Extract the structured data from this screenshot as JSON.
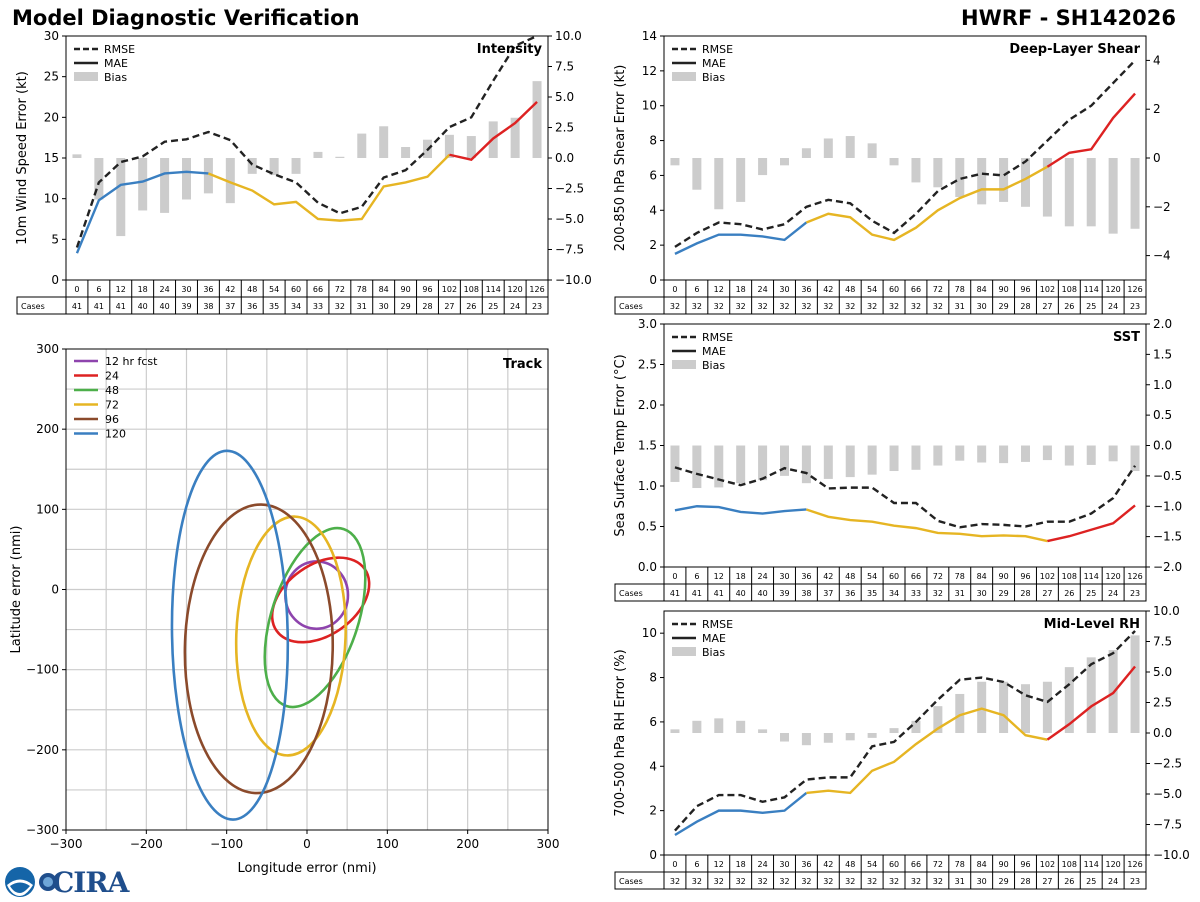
{
  "header": {
    "title": "Model Diagnostic Verification",
    "storm": "HWRF - SH142026"
  },
  "logo": {
    "text": "CIRA",
    "seal_text": "NOAA"
  },
  "colors": {
    "rmse": "#222222",
    "bias": "#cccccc",
    "seg1": "#3a7fc1",
    "seg2": "#e6b523",
    "seg3": "#dd2222",
    "grid": "#cccccc"
  },
  "hours": [
    "0",
    "6",
    "12",
    "18",
    "24",
    "30",
    "36",
    "42",
    "48",
    "54",
    "60",
    "66",
    "72",
    "78",
    "84",
    "90",
    "96",
    "102",
    "108",
    "114",
    "120",
    "126"
  ],
  "legend_labels": {
    "rmse": "RMSE",
    "mae": "MAE",
    "bias": "Bias"
  },
  "cases_label": "Cases",
  "chart_data": [
    {
      "id": "intensity",
      "type": "line",
      "title": "Intensity",
      "ylabel": "10m Wind Speed Error (kt)",
      "ylim": [
        0,
        30
      ],
      "yticks": [
        "0",
        "5",
        "10",
        "15",
        "20",
        "25",
        "30"
      ],
      "y2lim": [
        -10,
        10
      ],
      "y2ticks": [
        "−10.0",
        "−7.5",
        "−5.0",
        "−2.5",
        "0.0",
        "2.5",
        "5.0",
        "7.5",
        "10.0"
      ],
      "series": [
        {
          "name": "RMSE",
          "values": [
            4.0,
            12.0,
            14.5,
            15.2,
            17.0,
            17.3,
            18.2,
            17.2,
            14.2,
            13.0,
            12.0,
            9.5,
            8.2,
            9.0,
            12.6,
            13.5,
            16.0,
            18.8,
            20.0,
            24.5,
            28.8,
            30.0
          ]
        },
        {
          "name": "MAE",
          "values": [
            3.3,
            9.8,
            11.7,
            12.1,
            13.1,
            13.3,
            13.1,
            12.0,
            11.0,
            9.3,
            9.6,
            7.5,
            7.3,
            7.5,
            11.5,
            12.0,
            12.7,
            15.4,
            14.8,
            17.4,
            19.3,
            21.9
          ]
        },
        {
          "name": "Bias",
          "values": [
            0.3,
            -3.4,
            -6.4,
            -4.3,
            -4.5,
            -3.4,
            -2.9,
            -3.7,
            -1.3,
            -1.4,
            -1.3,
            0.5,
            0.1,
            2.0,
            2.6,
            0.9,
            1.5,
            1.9,
            1.8,
            3.0,
            3.3,
            6.3
          ]
        }
      ],
      "cases": [
        "41",
        "41",
        "41",
        "40",
        "40",
        "39",
        "38",
        "37",
        "36",
        "35",
        "34",
        "33",
        "32",
        "31",
        "30",
        "29",
        "28",
        "27",
        "26",
        "25",
        "24",
        "23"
      ]
    },
    {
      "id": "shear",
      "type": "line",
      "title": "Deep-Layer Shear",
      "ylabel": "200-850 hPa Shear Error (kt)",
      "ylim": [
        0,
        14
      ],
      "yticks": [
        "0",
        "2",
        "4",
        "6",
        "8",
        "10",
        "12",
        "14"
      ],
      "y2lim": [
        -5,
        5
      ],
      "y2ticks": [
        "−4",
        "−2",
        "0",
        "2",
        "4"
      ],
      "series": [
        {
          "name": "RMSE",
          "values": [
            1.9,
            2.7,
            3.3,
            3.2,
            2.9,
            3.2,
            4.2,
            4.6,
            4.4,
            3.4,
            2.7,
            3.8,
            5.1,
            5.8,
            6.1,
            6.0,
            6.8,
            8.0,
            9.2,
            10.0,
            11.3,
            12.6
          ]
        },
        {
          "name": "MAE",
          "values": [
            1.5,
            2.1,
            2.6,
            2.6,
            2.5,
            2.3,
            3.3,
            3.8,
            3.6,
            2.6,
            2.3,
            3.0,
            4.0,
            4.7,
            5.2,
            5.2,
            5.8,
            6.5,
            7.3,
            7.5,
            9.3,
            10.7
          ]
        },
        {
          "name": "Bias",
          "values": [
            -0.3,
            -1.3,
            -2.1,
            -1.8,
            -0.7,
            -0.3,
            0.4,
            0.8,
            0.9,
            0.6,
            -0.3,
            -1.0,
            -1.2,
            -1.6,
            -1.9,
            -1.8,
            -2.0,
            -2.4,
            -2.8,
            -2.8,
            -3.1,
            -2.9
          ]
        }
      ],
      "cases": [
        "32",
        "32",
        "32",
        "32",
        "32",
        "32",
        "32",
        "32",
        "32",
        "32",
        "32",
        "32",
        "32",
        "31",
        "30",
        "29",
        "28",
        "27",
        "26",
        "25",
        "24",
        "23"
      ]
    },
    {
      "id": "sst",
      "type": "line",
      "title": "SST",
      "ylabel": "Sea Surface Temp Error (°C)",
      "ylim": [
        0,
        3
      ],
      "yticks": [
        "0.0",
        "0.5",
        "1.0",
        "1.5",
        "2.0",
        "2.5",
        "3.0"
      ],
      "y2lim": [
        -2,
        2
      ],
      "y2ticks": [
        "−2.0",
        "−1.5",
        "−1.0",
        "−0.5",
        "0.0",
        "0.5",
        "1.0",
        "1.5",
        "2.0"
      ],
      "series": [
        {
          "name": "RMSE",
          "values": [
            1.23,
            1.15,
            1.08,
            1.01,
            1.09,
            1.22,
            1.16,
            0.97,
            0.98,
            0.98,
            0.79,
            0.79,
            0.57,
            0.49,
            0.53,
            0.52,
            0.5,
            0.56,
            0.56,
            0.66,
            0.85,
            1.25
          ]
        },
        {
          "name": "MAE",
          "values": [
            0.7,
            0.75,
            0.74,
            0.68,
            0.66,
            0.69,
            0.71,
            0.62,
            0.58,
            0.56,
            0.51,
            0.48,
            0.42,
            0.41,
            0.38,
            0.39,
            0.38,
            0.32,
            0.38,
            0.46,
            0.54,
            0.76
          ]
        },
        {
          "name": "Bias",
          "values": [
            -0.6,
            -0.7,
            -0.69,
            -0.62,
            -0.57,
            -0.5,
            -0.62,
            -0.55,
            -0.52,
            -0.48,
            -0.42,
            -0.4,
            -0.33,
            -0.25,
            -0.28,
            -0.29,
            -0.27,
            -0.24,
            -0.33,
            -0.32,
            -0.26,
            -0.42
          ]
        }
      ],
      "cases": [
        "41",
        "41",
        "41",
        "40",
        "40",
        "39",
        "38",
        "37",
        "36",
        "35",
        "34",
        "33",
        "32",
        "31",
        "30",
        "29",
        "28",
        "27",
        "26",
        "25",
        "24",
        "23"
      ]
    },
    {
      "id": "rh",
      "type": "line",
      "title": "Mid-Level RH",
      "ylabel": "700-500 hPa RH Error (%)",
      "ylim": [
        0,
        11
      ],
      "yticks": [
        "0",
        "2",
        "4",
        "6",
        "8",
        "10"
      ],
      "y2lim": [
        -10,
        10
      ],
      "y2ticks": [
        "−10.0",
        "−7.5",
        "−5.0",
        "−2.5",
        "0.0",
        "2.5",
        "5.0",
        "7.5",
        "10.0"
      ],
      "series": [
        {
          "name": "RMSE",
          "values": [
            1.1,
            2.2,
            2.7,
            2.7,
            2.4,
            2.6,
            3.4,
            3.5,
            3.5,
            4.9,
            5.1,
            6.0,
            7.0,
            7.9,
            8.0,
            7.8,
            7.2,
            6.9,
            7.7,
            8.6,
            9.1,
            10.1
          ]
        },
        {
          "name": "MAE",
          "values": [
            0.9,
            1.5,
            2.0,
            2.0,
            1.9,
            2.0,
            2.8,
            2.9,
            2.8,
            3.8,
            4.2,
            5.0,
            5.7,
            6.3,
            6.6,
            6.3,
            5.4,
            5.2,
            5.9,
            6.7,
            7.3,
            8.5
          ]
        },
        {
          "name": "Bias",
          "values": [
            0.3,
            1.0,
            1.2,
            1.0,
            0.3,
            -0.7,
            -1.0,
            -0.8,
            -0.6,
            -0.4,
            0.4,
            1.0,
            2.2,
            3.2,
            4.2,
            4.2,
            4.0,
            4.2,
            5.4,
            6.2,
            6.8,
            8.0
          ]
        }
      ],
      "cases": [
        "32",
        "32",
        "32",
        "32",
        "32",
        "32",
        "32",
        "32",
        "32",
        "32",
        "32",
        "32",
        "32",
        "31",
        "30",
        "29",
        "28",
        "27",
        "26",
        "25",
        "24",
        "23"
      ]
    },
    {
      "id": "track",
      "type": "ellipse",
      "title": "Track",
      "xlabel": "Longitude error (nmi)",
      "ylabel": "Latitude error (nmi)",
      "xlim": [
        -300,
        300
      ],
      "ylim": [
        -300,
        300
      ],
      "xticks": [
        "−300",
        "−200",
        "−100",
        "0",
        "100",
        "200",
        "300"
      ],
      "yticks": [
        "−300",
        "−200",
        "−100",
        "0",
        "100",
        "200",
        "300"
      ],
      "ellipses": [
        {
          "name": "12 hr fcst",
          "color": "#8e44ad",
          "cx": 12,
          "cy": -7,
          "rx": 39,
          "ry": 42,
          "angle": 0
        },
        {
          "name": "24",
          "color": "#dd2222",
          "cx": 17,
          "cy": -13,
          "rx": 67,
          "ry": 44,
          "angle": -35
        },
        {
          "name": "48",
          "color": "#4daf4a",
          "cx": 10,
          "cy": -35,
          "rx": 54,
          "ry": 116,
          "angle": 18
        },
        {
          "name": "72",
          "color": "#e6b523",
          "cx": -20,
          "cy": -58,
          "rx": 68,
          "ry": 149,
          "angle": 2
        },
        {
          "name": "96",
          "color": "#8b4a2b",
          "cx": -60,
          "cy": -74,
          "rx": 92,
          "ry": 180,
          "angle": 1
        },
        {
          "name": "120",
          "color": "#3a7fc1",
          "cx": -96,
          "cy": -57,
          "rx": 72,
          "ry": 230,
          "angle": -1
        }
      ]
    }
  ]
}
